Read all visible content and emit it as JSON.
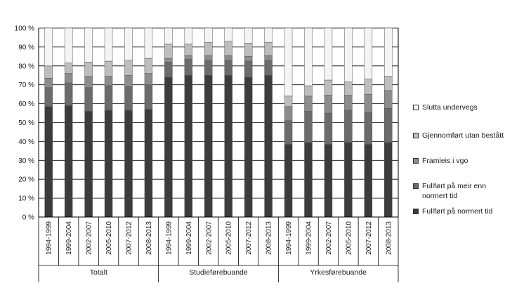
{
  "chart_data": {
    "type": "bar",
    "stacked": true,
    "categories": [
      "1994-1999",
      "1999-2004",
      "2002-2007",
      "2005-2010",
      "2007-2012",
      "2008-2013",
      "1994-1999",
      "1999-2004",
      "2002-2007",
      "2005-2010",
      "2007-2012",
      "2008-2013",
      "1994-1999",
      "1999-2004",
      "2002-2007",
      "2005-2010",
      "2007-2012",
      "2008-2013"
    ],
    "groups": [
      {
        "label": "Totalt",
        "count": 6
      },
      {
        "label": "Studieførebuande",
        "count": 6
      },
      {
        "label": "Yrkesførebuande",
        "count": 6
      }
    ],
    "ylim": [
      0,
      100
    ],
    "yticks": [
      0,
      10,
      20,
      30,
      40,
      50,
      60,
      70,
      80,
      90,
      100
    ],
    "ytick_suffix": " %",
    "grid": true,
    "legend_position": "right",
    "series": [
      {
        "name": "Fullført på normert tid",
        "color": "#3c3c3c",
        "values": [
          58.5,
          59,
          56,
          56.5,
          56.5,
          57,
          74,
          75,
          75,
          75,
          74,
          75,
          38.5,
          39.5,
          38.5,
          39.5,
          38.5,
          39.5
        ]
      },
      {
        "name": "Fullført på meir enn normert tid",
        "color": "#6b6b6b",
        "values": [
          10,
          12,
          12.5,
          13,
          12.5,
          13,
          8,
          8.5,
          8,
          8,
          8.5,
          8,
          12.5,
          16.5,
          16.5,
          17,
          17,
          18
        ]
      },
      {
        "name": "Framleis i vgo",
        "color": "#8c8c8c",
        "values": [
          5,
          5,
          6,
          5,
          6,
          6,
          2,
          2,
          2.5,
          2.5,
          2.5,
          2.5,
          7.5,
          8,
          9.5,
          8,
          9.5,
          9.5
        ]
      },
      {
        "name": "Gjennomført utan bestått",
        "color": "#bdbdbd",
        "values": [
          6.5,
          5.5,
          7.5,
          8,
          8,
          8,
          7.5,
          6,
          7,
          7.5,
          7,
          7,
          5.5,
          5.5,
          8,
          7,
          8,
          7.5
        ]
      },
      {
        "name": "Slutta undervegs",
        "color": "#f4f4f4",
        "values": [
          20,
          18.5,
          18,
          17.5,
          17,
          16,
          8.5,
          8.5,
          7.5,
          7,
          8,
          7.5,
          36,
          30.5,
          27.5,
          28.5,
          27,
          25.5
        ]
      }
    ]
  },
  "legend": {
    "items": [
      {
        "label": "Slutta undervegs"
      },
      {
        "label": "Gjennomført utan bestått"
      },
      {
        "label": "Framleis i vgo"
      },
      {
        "label": "Fullført på meir enn normert tid"
      },
      {
        "label": "Fullført på normert tid"
      }
    ]
  }
}
